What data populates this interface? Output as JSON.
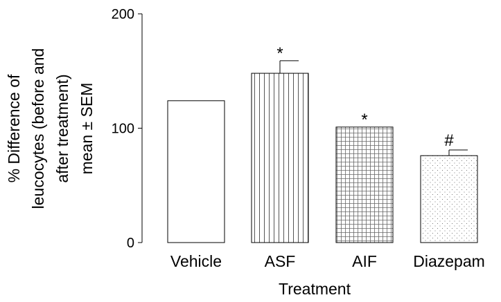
{
  "chart_data": {
    "type": "bar",
    "categories": [
      "Vehicle",
      "ASF",
      "AIF",
      "Diazepam"
    ],
    "values": [
      124,
      148,
      101,
      76
    ],
    "error": [
      0,
      11,
      0,
      5
    ],
    "significance": [
      "",
      "*",
      "*",
      "#"
    ],
    "patterns": [
      "none",
      "vertical-lines",
      "grid",
      "dots"
    ],
    "xlabel": "Treatment",
    "ylabel_lines": [
      "% Difference of",
      "leucocytes (before and",
      "after treatment)",
      "mean ± SEM"
    ],
    "ylim": [
      0,
      200
    ],
    "yticks": [
      0,
      100,
      200
    ],
    "grid": false,
    "legend": "none"
  }
}
